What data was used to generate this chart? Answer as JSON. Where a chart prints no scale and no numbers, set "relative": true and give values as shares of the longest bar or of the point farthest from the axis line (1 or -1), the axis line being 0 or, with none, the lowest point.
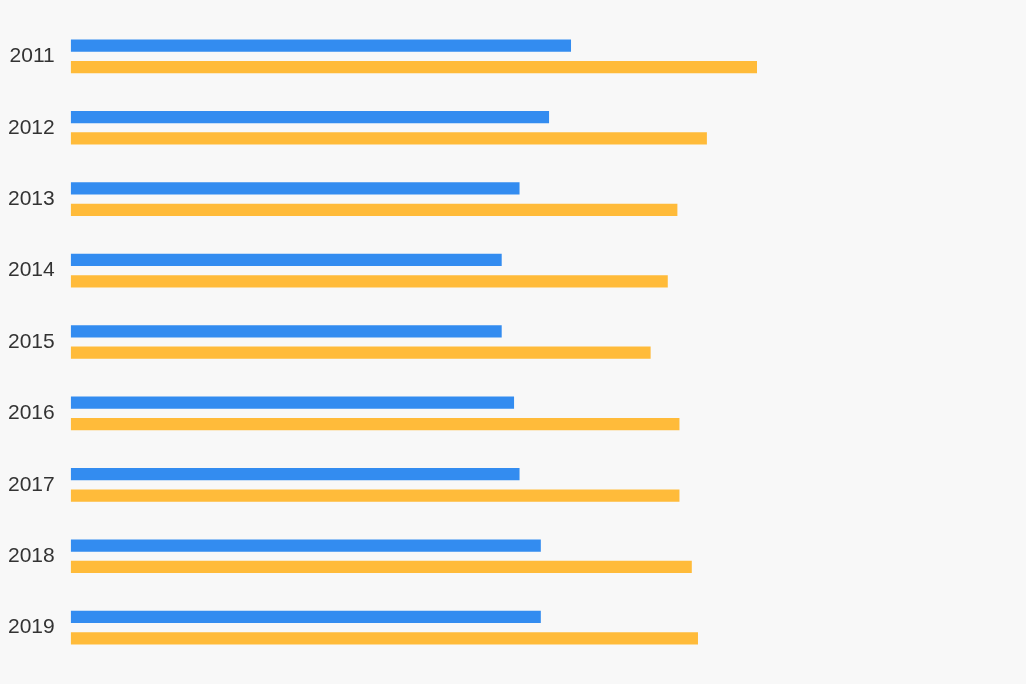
{
  "chart_data": {
    "type": "bar",
    "orientation": "horizontal",
    "relative": true,
    "categories": [
      "2011",
      "2012",
      "2013",
      "2014",
      "2015",
      "2016",
      "2017",
      "2018",
      "2019"
    ],
    "series": [
      {
        "color": "#338cf0",
        "values": [
          0.729,
          0.697,
          0.654,
          0.628,
          0.628,
          0.646,
          0.654,
          0.685,
          0.685
        ]
      },
      {
        "color": "#ffbb3a",
        "values": [
          1,
          0.927,
          0.884,
          0.87,
          0.845,
          0.887,
          0.887,
          0.905,
          0.914
        ]
      }
    ]
  }
}
